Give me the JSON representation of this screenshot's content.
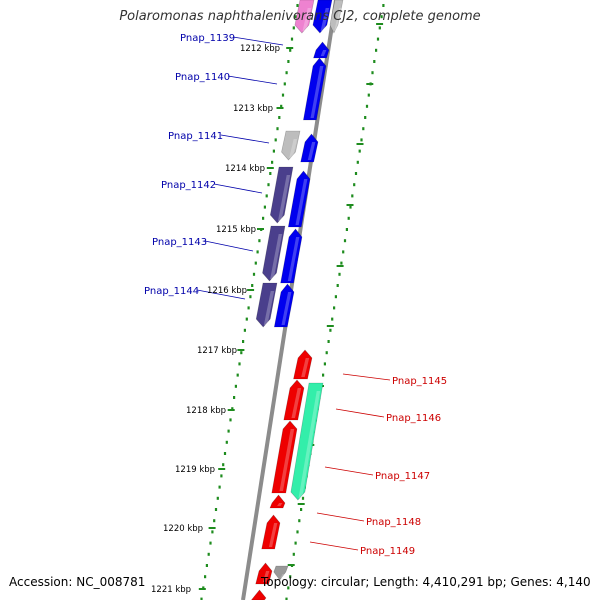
{
  "title": "Polaromonas naphthalenivorans CJ2, complete genome",
  "footer": {
    "accession": "Accession: NC_008781",
    "topology": "Topology: circular; Length: 4,410,291 bp; Genes: 4,140"
  },
  "colors": {
    "backbone": "#8c8c8c",
    "ruler_ticks": "#1e8c1e",
    "forward_blue": "#0000ee",
    "reverse_navy": "#4a3f8c",
    "red": "#ee0000",
    "teal": "#33eeaa",
    "grey": "#bdbdbd",
    "pink": "#ee82d0",
    "label_blue": "#0000aa",
    "label_red": "#cc0000"
  },
  "kbp_ticks": [
    "1212 kbp",
    "1213 kbp",
    "1214 kbp",
    "1215 kbp",
    "1216 kbp",
    "1217 kbp",
    "1218 kbp",
    "1219 kbp",
    "1220 kbp",
    "1221 kbp"
  ],
  "gene_labels_left": [
    "Pnap_1139",
    "Pnap_1140",
    "Pnap_1141",
    "Pnap_1142",
    "Pnap_1143",
    "Pnap_1144"
  ],
  "gene_labels_right": [
    "Pnap_1145",
    "Pnap_1146",
    "Pnap_1147",
    "Pnap_1148",
    "Pnap_1149"
  ]
}
